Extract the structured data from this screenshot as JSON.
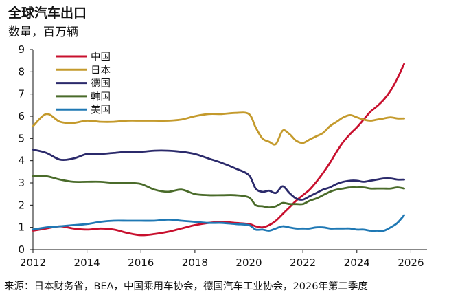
{
  "header": {
    "title": "全球汽车出口",
    "subtitle": "数量，百万辆"
  },
  "footer": {
    "source": "来源：日本财务省，BEA，中国乘用车协会，德国汽车工业协会，2026年第二季度"
  },
  "chart_data": {
    "type": "line",
    "title": "全球汽车出口",
    "ylabel": "数量，百万辆",
    "xlim": [
      2012,
      2026.6
    ],
    "ylim": [
      0,
      9
    ],
    "x_ticks": [
      2012,
      2014,
      2016,
      2018,
      2020,
      2022,
      2024,
      2026
    ],
    "y_ticks": [
      0,
      1,
      2,
      3,
      4,
      5,
      6,
      7,
      8,
      9
    ],
    "grid": false,
    "legend_position": "top-left",
    "x": [
      2012.0,
      2012.5,
      2013.0,
      2013.5,
      2014.0,
      2014.5,
      2015.0,
      2015.5,
      2016.0,
      2016.5,
      2017.0,
      2017.5,
      2018.0,
      2018.5,
      2019.0,
      2019.5,
      2020.0,
      2020.25,
      2020.5,
      2020.75,
      2021.0,
      2021.25,
      2021.5,
      2021.75,
      2022.0,
      2022.25,
      2022.5,
      2022.75,
      2023.0,
      2023.25,
      2023.5,
      2023.75,
      2024.0,
      2024.25,
      2024.5,
      2024.75,
      2025.0,
      2025.25,
      2025.5,
      2025.75
    ],
    "series": [
      {
        "name": "中国",
        "color": "#c8102e",
        "values": [
          0.85,
          0.95,
          1.05,
          0.95,
          0.9,
          0.95,
          0.9,
          0.75,
          0.65,
          0.7,
          0.8,
          0.95,
          1.1,
          1.2,
          1.25,
          1.2,
          1.15,
          1.05,
          1.0,
          1.1,
          1.3,
          1.6,
          1.9,
          2.2,
          2.45,
          2.7,
          3.05,
          3.45,
          3.9,
          4.4,
          4.85,
          5.2,
          5.5,
          5.85,
          6.2,
          6.45,
          6.75,
          7.15,
          7.7,
          8.35
        ]
      },
      {
        "name": "日本",
        "color": "#c49a2c",
        "values": [
          5.55,
          6.1,
          5.75,
          5.7,
          5.8,
          5.75,
          5.75,
          5.8,
          5.8,
          5.8,
          5.8,
          5.85,
          6.0,
          6.1,
          6.1,
          6.15,
          6.1,
          5.5,
          5.0,
          4.85,
          4.75,
          5.35,
          5.2,
          4.9,
          4.8,
          4.95,
          5.1,
          5.25,
          5.55,
          5.75,
          5.95,
          6.05,
          5.95,
          5.85,
          5.8,
          5.85,
          5.9,
          5.95,
          5.9,
          5.9
        ]
      },
      {
        "name": "德国",
        "color": "#2b2a6b",
        "values": [
          4.5,
          4.35,
          4.05,
          4.1,
          4.3,
          4.3,
          4.35,
          4.4,
          4.4,
          4.45,
          4.45,
          4.4,
          4.3,
          4.1,
          3.9,
          3.65,
          3.35,
          2.75,
          2.6,
          2.65,
          2.55,
          2.85,
          2.55,
          2.3,
          2.25,
          2.4,
          2.55,
          2.7,
          2.8,
          2.95,
          3.05,
          3.1,
          3.1,
          3.05,
          3.1,
          3.15,
          3.2,
          3.2,
          3.15,
          3.15
        ]
      },
      {
        "name": "韩国",
        "color": "#4a6b2a",
        "values": [
          3.3,
          3.3,
          3.15,
          3.05,
          3.05,
          3.05,
          3.0,
          3.0,
          2.95,
          2.7,
          2.6,
          2.7,
          2.5,
          2.45,
          2.45,
          2.45,
          2.35,
          2.0,
          1.95,
          1.9,
          1.95,
          2.1,
          2.05,
          2.05,
          2.05,
          2.2,
          2.3,
          2.45,
          2.6,
          2.7,
          2.75,
          2.8,
          2.8,
          2.8,
          2.75,
          2.75,
          2.75,
          2.75,
          2.8,
          2.75
        ]
      },
      {
        "name": "美国",
        "color": "#1f78b4",
        "values": [
          0.9,
          1.0,
          1.05,
          1.1,
          1.15,
          1.25,
          1.3,
          1.3,
          1.3,
          1.3,
          1.35,
          1.3,
          1.25,
          1.2,
          1.2,
          1.15,
          1.1,
          0.9,
          0.9,
          0.85,
          0.95,
          1.05,
          1.0,
          0.95,
          0.95,
          0.95,
          1.0,
          1.0,
          0.95,
          0.95,
          0.95,
          0.95,
          0.9,
          0.9,
          0.85,
          0.85,
          0.85,
          1.0,
          1.2,
          1.55
        ]
      }
    ]
  }
}
